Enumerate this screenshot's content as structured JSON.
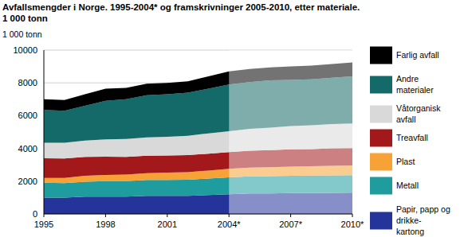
{
  "chart_data": {
    "type": "area",
    "stacked": true,
    "grid": true,
    "legend": "right",
    "title": "Avfallsmengder i Norge. 1995-2004* og framskrivninger 2005-2010, etter materiale.",
    "subtitle": "1 000 tonn",
    "y_label": "1 000 tonn",
    "categories": [
      "1995",
      null,
      null,
      "1998",
      null,
      null,
      "2001",
      null,
      null,
      "2004*",
      null,
      null,
      "2007*",
      null,
      null,
      "2010*"
    ],
    "ylim": [
      0,
      10000
    ],
    "yticks": [
      0,
      2000,
      4000,
      6000,
      8000,
      10000
    ],
    "series": [
      {
        "name": "Papir, papp og\ndrikke-\nkartong",
        "color": "#24349a",
        "values": [
          1000,
          1000,
          1050,
          1050,
          1050,
          1100,
          1100,
          1100,
          1150,
          1200,
          1250,
          1250,
          1270,
          1280,
          1290,
          1300
        ]
      },
      {
        "name": "Metall",
        "color": "#1e9c9e",
        "values": [
          900,
          880,
          920,
          950,
          950,
          970,
          980,
          990,
          1010,
          1030,
          1040,
          1050,
          1060,
          1060,
          1070,
          1070
        ]
      },
      {
        "name": "Plast",
        "color": "#f7a236",
        "values": [
          300,
          320,
          360,
          380,
          400,
          420,
          440,
          460,
          490,
          520,
          540,
          550,
          560,
          570,
          580,
          590
        ]
      },
      {
        "name": "Treavfall",
        "color": "#a3191b",
        "values": [
          1200,
          1180,
          1150,
          1120,
          1080,
          1060,
          1050,
          1040,
          1030,
          1020,
          1030,
          1040,
          1050,
          1050,
          1060,
          1060
        ]
      },
      {
        "name": "Våtorganisk\navfall",
        "color": "#d9d9d9",
        "values": [
          950,
          970,
          1000,
          1050,
          1100,
          1120,
          1140,
          1180,
          1240,
          1280,
          1330,
          1380,
          1420,
          1450,
          1480,
          1500
        ]
      },
      {
        "name": "Andre\nmaterialer",
        "color": "#146a68",
        "values": [
          2000,
          1950,
          2120,
          2350,
          2420,
          2580,
          2590,
          2630,
          2730,
          2850,
          2860,
          2880,
          2820,
          2810,
          2830,
          2880
        ]
      },
      {
        "name": "Farlig avfall",
        "color": "#000000",
        "values": [
          650,
          650,
          700,
          750,
          700,
          700,
          700,
          700,
          750,
          800,
          800,
          800,
          820,
          830,
          840,
          850
        ]
      }
    ]
  }
}
